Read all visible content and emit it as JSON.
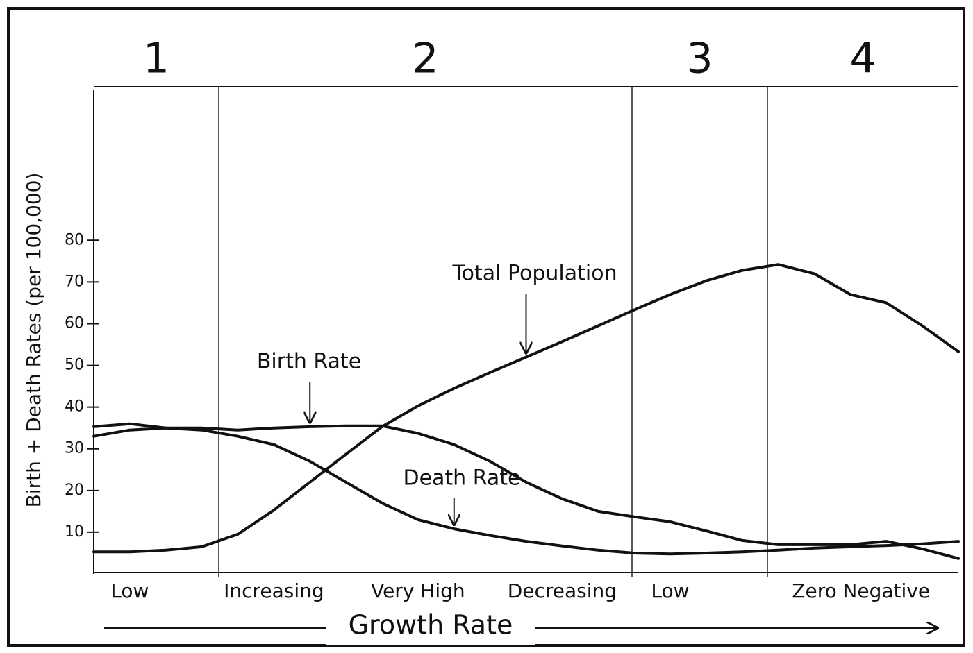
{
  "chart_data": {
    "type": "line",
    "stages": [
      "1",
      "2",
      "3",
      "4"
    ],
    "y_label": "Birth + Death Rates (per 100,000)",
    "x_label": "Growth Rate",
    "categories": [
      null,
      "Low",
      null,
      null,
      null,
      "Increasing",
      null,
      null,
      null,
      "Very High",
      null,
      null,
      null,
      "Decreasing",
      null,
      null,
      "Low",
      null,
      null,
      null,
      "Zero",
      null,
      "Negative",
      null,
      null
    ],
    "ylim": [
      0,
      116
    ],
    "yticks": [
      10,
      20,
      30,
      40,
      50,
      60,
      70,
      80
    ],
    "series": [
      {
        "name": "Birth Rate",
        "color": "#111111",
        "values": [
          35.3,
          36,
          35,
          35,
          34.5,
          35,
          35.3,
          35.5,
          35.5,
          33.7,
          31,
          27,
          22,
          18,
          15,
          13.7,
          12.5,
          10.3,
          8,
          7,
          7,
          7,
          7.8,
          6,
          3.7
        ]
      },
      {
        "name": "Death Rate",
        "color": "#111111",
        "values": [
          33,
          34.5,
          35,
          34.5,
          33,
          31,
          27,
          22,
          17,
          13,
          10.8,
          9.2,
          7.8,
          6.7,
          5.7,
          5,
          4.8,
          5,
          5.3,
          5.7,
          6.2,
          6.5,
          6.8,
          7.2,
          7.8
        ]
      },
      {
        "name": "Total Population",
        "color": "#111111",
        "values": [
          5.3,
          5.3,
          5.7,
          6.5,
          9.5,
          15.3,
          22,
          28.7,
          35.3,
          40.3,
          44.5,
          48.3,
          52,
          55.7,
          59.5,
          63.3,
          67,
          70.3,
          72.8,
          74.2,
          72,
          67,
          65,
          59.5,
          53.3
        ]
      }
    ]
  }
}
